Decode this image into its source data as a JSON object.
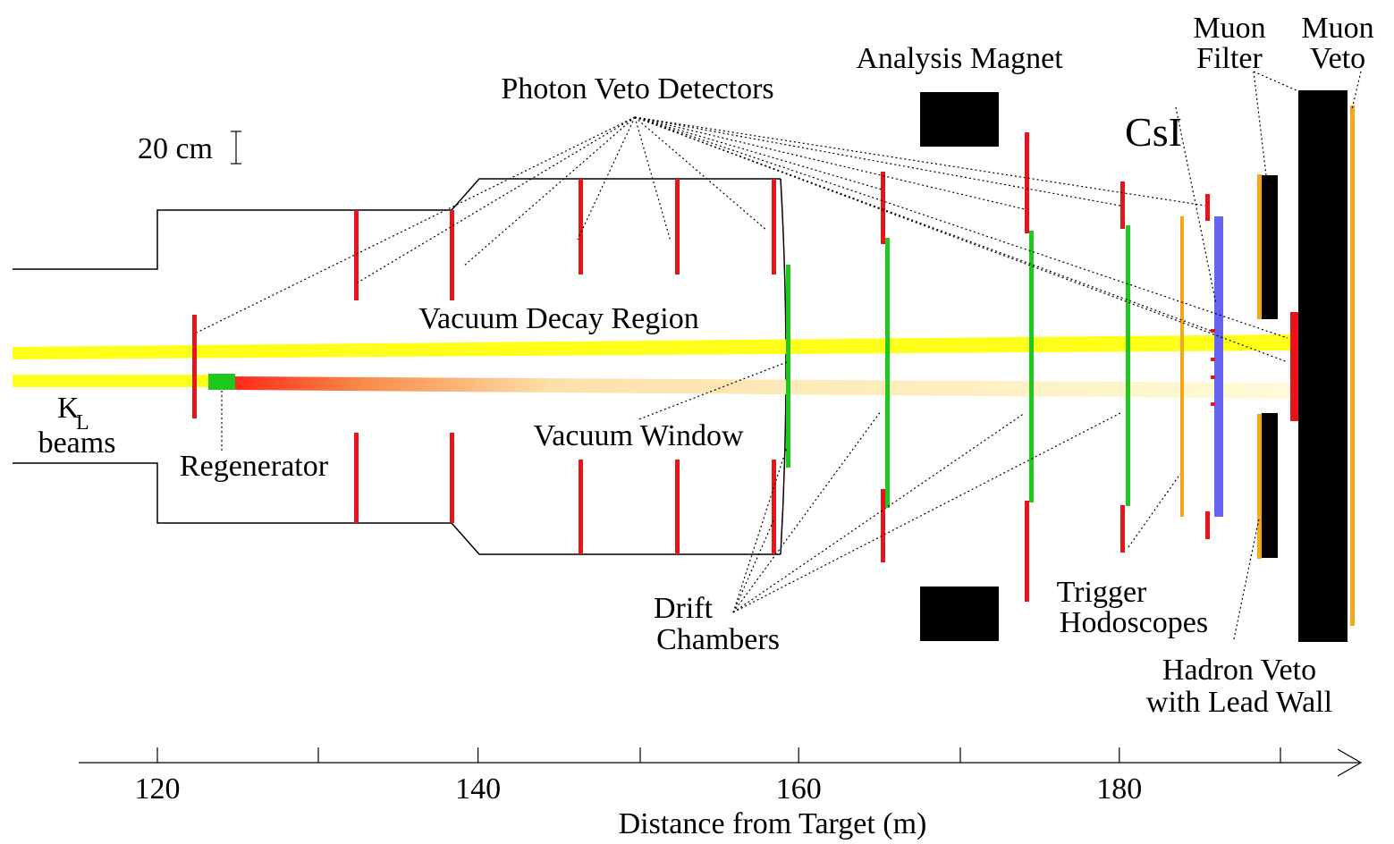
{
  "labels": {
    "photon_veto": "Photon Veto Detectors",
    "analysis_magnet": "Analysis Magnet",
    "muon_filter": [
      "Muon",
      "Filter"
    ],
    "muon_veto": [
      "Muon",
      "Veto"
    ],
    "csi": "CsI",
    "scale": "20 cm",
    "decay_region": "Vacuum Decay Region",
    "vacuum_window": "Vacuum Window",
    "beams": {
      "symbol": "K",
      "subscript": "L",
      "text": "beams"
    },
    "regenerator": "Regenerator",
    "drift_chambers": [
      "Drift",
      "Chambers"
    ],
    "trigger_hodoscopes": [
      "Trigger",
      "Hodoscopes"
    ],
    "hadron_veto": [
      "Hadron Veto",
      "with Lead Wall"
    ]
  },
  "axis": {
    "title": "Distance from Target (m)",
    "ticks": [
      120,
      140,
      160,
      180
    ]
  }
}
